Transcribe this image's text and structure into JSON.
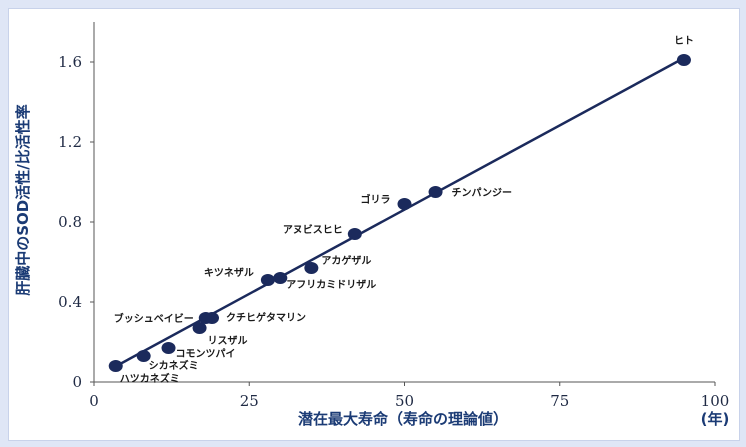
{
  "chart_data": {
    "type": "scatter",
    "title": "",
    "xlabel": "潜在最大寿命（寿命の理論値）",
    "ylabel": "肝臓中のSOD活性/比活性率",
    "x_unit": "(年)",
    "xlim": [
      0,
      100
    ],
    "ylim": [
      0,
      1.8
    ],
    "xticks": [
      "0",
      "25",
      "50",
      "75",
      "100"
    ],
    "yticks": [
      "0",
      "0.4",
      "0.8",
      "1.2",
      "1.6"
    ],
    "grid": false,
    "legend": "none",
    "trendline": {
      "x": [
        3,
        95
      ],
      "y": [
        0.07,
        1.62
      ]
    },
    "points": [
      {
        "label": "ハツカネズミ",
        "x": 3.5,
        "y": 0.08
      },
      {
        "label": "シカネズミ",
        "x": 8,
        "y": 0.13
      },
      {
        "label": "コモンツパイ",
        "x": 12,
        "y": 0.17
      },
      {
        "label": "リスザル",
        "x": 17,
        "y": 0.27
      },
      {
        "label": "ブッシュベイビー",
        "x": 18,
        "y": 0.32
      },
      {
        "label": "クチヒゲタマリン",
        "x": 19,
        "y": 0.32
      },
      {
        "label": "キツネザル",
        "x": 28,
        "y": 0.51
      },
      {
        "label": "アフリカミドリザル",
        "x": 30,
        "y": 0.52
      },
      {
        "label": "アカゲザル",
        "x": 35,
        "y": 0.57
      },
      {
        "label": "アヌビスヒヒ",
        "x": 42,
        "y": 0.74
      },
      {
        "label": "ゴリラ",
        "x": 50,
        "y": 0.89
      },
      {
        "label": "チンパンジー",
        "x": 55,
        "y": 0.95
      },
      {
        "label": "ヒト",
        "x": 95,
        "y": 1.61
      }
    ],
    "colors": {
      "series": "#1b2a5c",
      "axis_title": "#1b3b75"
    }
  }
}
